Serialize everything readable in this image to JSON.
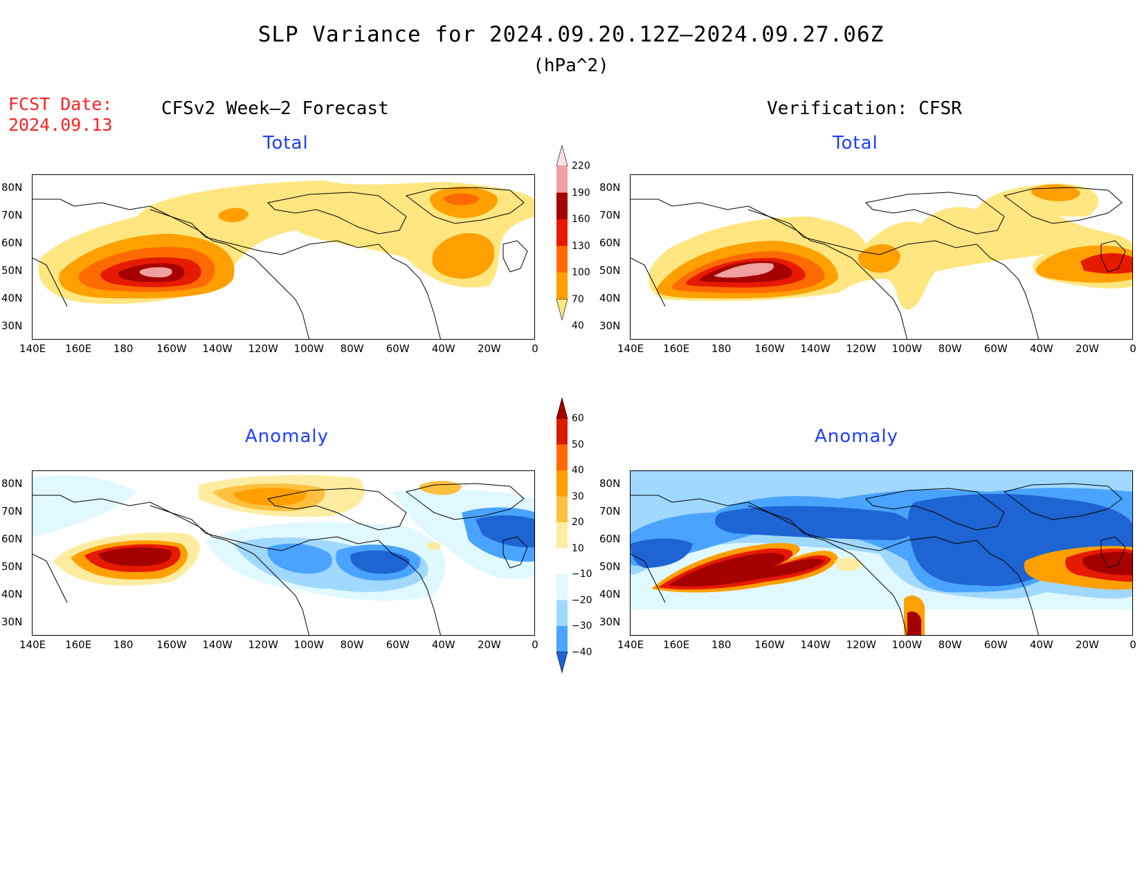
{
  "title": "SLP Variance for 2024.09.20.12Z—2024.09.27.06Z",
  "units": "(hPa^2)",
  "fcst_label": "FCST Date:",
  "fcst_date": "2024.09.13",
  "left_header": "CFSv2 Week—2 Forecast",
  "right_header": "Verification: CFSR",
  "panel_titles": {
    "total": "Total",
    "anomaly": "Anomaly"
  },
  "lat_labels": [
    "80N",
    "70N",
    "60N",
    "50N",
    "40N",
    "30N"
  ],
  "lon_labels": [
    "140E",
    "160E",
    "180",
    "160W",
    "140W",
    "120W",
    "100W",
    "80W",
    "60W",
    "40W",
    "20W",
    "0"
  ],
  "total_colorbar": {
    "levels": [
      "40",
      "70",
      "100",
      "130",
      "160",
      "190",
      "220"
    ],
    "colors": [
      "#ffe680",
      "#ffa000",
      "#ff6a00",
      "#e61a00",
      "#a50000",
      "#f0a0a0",
      "#fde0e8"
    ]
  },
  "anomaly_colorbar": {
    "levels": [
      "60",
      "50",
      "40",
      "30",
      "20",
      "10",
      "−10",
      "−20",
      "−30",
      "−40"
    ],
    "colors": [
      "#a50000",
      "#d71c00",
      "#ff6a00",
      "#ffa000",
      "#ffc040",
      "#ffeca0",
      "#ffffff",
      "#e0f8ff",
      "#a0d8ff",
      "#4aa4ff",
      "#1e64d2"
    ]
  }
}
